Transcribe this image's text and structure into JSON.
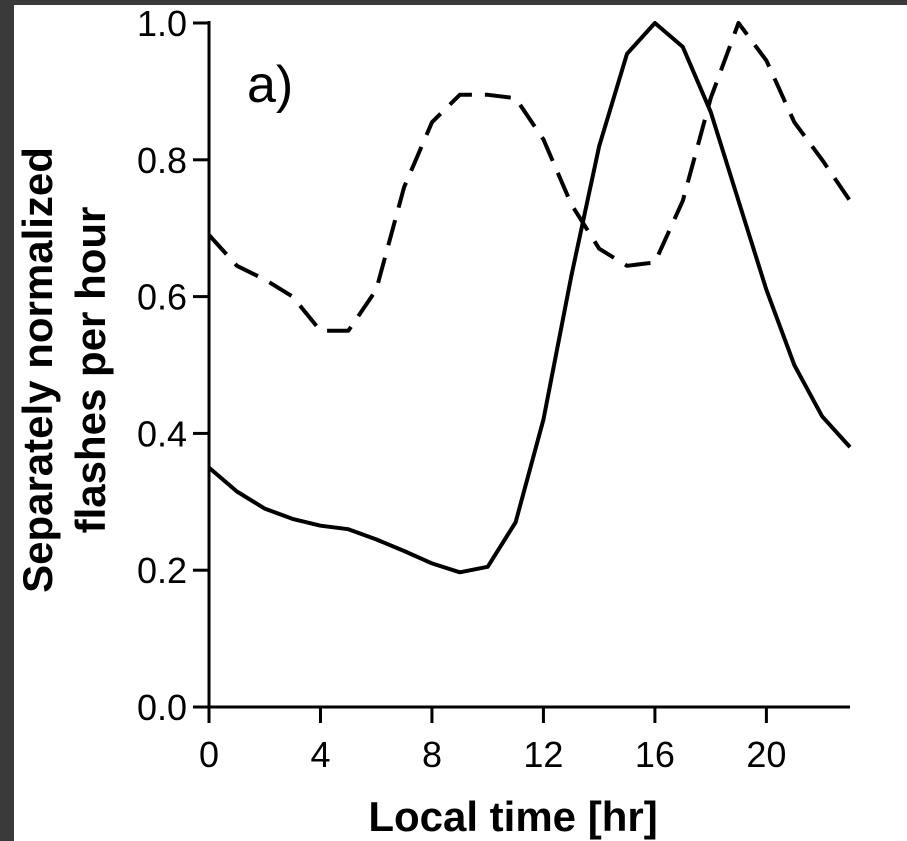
{
  "chart_data": {
    "type": "line",
    "panel_label": "a)",
    "xlabel": "Local time [hr]",
    "ylabel_lines": [
      "Separately normalized",
      "flashes per hour"
    ],
    "xlim": [
      0,
      23
    ],
    "ylim": [
      0,
      1
    ],
    "x_ticks": [
      0,
      4,
      8,
      12,
      16,
      20
    ],
    "y_ticks": [
      0.0,
      0.2,
      0.4,
      0.6,
      0.8,
      1.0
    ],
    "y_tick_labels": [
      "0.0",
      "0.2",
      "0.4",
      "0.6",
      "0.8",
      "1.0"
    ],
    "x_tick_labels": [
      "0",
      "4",
      "8",
      "12",
      "16",
      "20"
    ],
    "grid": false,
    "colors": {
      "line": "#000000",
      "axis": "#000000",
      "background": "#ffffff",
      "frame": "#3a3a3a"
    },
    "series": [
      {
        "style": "solid",
        "x": [
          0,
          1,
          2,
          3,
          4,
          5,
          6,
          7,
          8,
          9,
          10,
          11,
          12,
          13,
          14,
          15,
          16,
          17,
          18,
          19,
          20,
          21,
          22,
          23
        ],
        "y": [
          0.35,
          0.315,
          0.29,
          0.275,
          0.265,
          0.26,
          0.245,
          0.228,
          0.21,
          0.197,
          0.205,
          0.27,
          0.42,
          0.63,
          0.82,
          0.955,
          1.0,
          0.965,
          0.87,
          0.74,
          0.61,
          0.5,
          0.425,
          0.38
        ]
      },
      {
        "style": "dashed",
        "x": [
          0,
          1,
          2,
          3,
          4,
          5,
          6,
          7,
          8,
          9,
          10,
          11,
          12,
          13,
          14,
          15,
          16,
          17,
          18,
          19,
          20,
          21,
          22,
          23
        ],
        "y": [
          0.69,
          0.645,
          0.625,
          0.6,
          0.55,
          0.55,
          0.61,
          0.76,
          0.855,
          0.895,
          0.895,
          0.89,
          0.83,
          0.735,
          0.67,
          0.645,
          0.65,
          0.74,
          0.89,
          1.0,
          0.945,
          0.855,
          0.8,
          0.74
        ]
      }
    ]
  }
}
